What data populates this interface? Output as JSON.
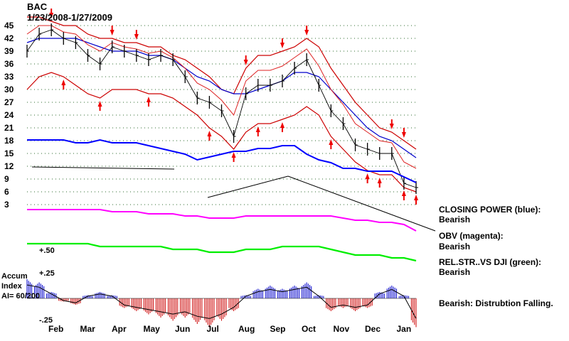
{
  "chart_data": {
    "type": "line",
    "title": "BAC",
    "subtitle": "1/23/2008-1/27/2009",
    "price_ticks": [
      45,
      42,
      39,
      36,
      33,
      30,
      27,
      24,
      21,
      18,
      15,
      12,
      9,
      6,
      3
    ],
    "ylim": [
      3,
      45
    ],
    "month_labels": [
      "Feb",
      "Mar",
      "Apr",
      "May",
      "Jun",
      "Jul",
      "Aug",
      "Sep",
      "Oct",
      "Nov",
      "Dec",
      "Jan"
    ],
    "accum_ticks": [
      "+.50",
      "+.25",
      "-.25"
    ],
    "price_series": {
      "x": [
        0,
        8,
        16,
        24,
        32,
        40,
        48,
        56,
        64,
        72,
        80,
        88,
        96,
        104,
        112,
        120,
        128,
        136,
        144,
        152,
        160,
        168,
        176,
        184,
        192,
        200,
        208,
        216,
        224,
        232,
        240,
        248,
        256
      ],
      "close": [
        39,
        43,
        44,
        42,
        41,
        38,
        36,
        40,
        39,
        38,
        37,
        38,
        37,
        33,
        28,
        27,
        25,
        19,
        29,
        31,
        31,
        32,
        35,
        37,
        31,
        25,
        22,
        17,
        16,
        15,
        15,
        8,
        7
      ]
    },
    "moving_average_blue": [
      41,
      42,
      42,
      42,
      42,
      41,
      40,
      39,
      39,
      39,
      38,
      38,
      37,
      35,
      33,
      32,
      30,
      29,
      29,
      30,
      31,
      32,
      34,
      34,
      33,
      30,
      27,
      24,
      21,
      19,
      18,
      16,
      14
    ],
    "band_upper": [
      47,
      47,
      46,
      45,
      45,
      43,
      42,
      42,
      41,
      41,
      40,
      40,
      38,
      37,
      35,
      33,
      30,
      29,
      35,
      38,
      38,
      39,
      40,
      42,
      40,
      35,
      31,
      27,
      24,
      21,
      20,
      18,
      16
    ],
    "band_lower": [
      30,
      33,
      34,
      33,
      31,
      29,
      28,
      30,
      30,
      30,
      29,
      29,
      28,
      26,
      24,
      21,
      19,
      16,
      20,
      22,
      22,
      23,
      24,
      26,
      24,
      19,
      16,
      13,
      11,
      10,
      10,
      7,
      6
    ],
    "indicators": [
      {
        "name": "CLOSING POWER (blue):",
        "status": "Bearish",
        "color": "#0000ff"
      },
      {
        "name": "OBV (magenta):",
        "status": "Bearish",
        "color": "#ff00ff"
      },
      {
        "name": "REL.STR..VS DJI (green):",
        "status": "Bearish",
        "color": "#00ee00"
      }
    ],
    "closing_power": [
      12,
      12,
      12,
      12,
      11,
      11,
      12,
      11,
      11,
      11,
      10,
      9,
      8,
      7,
      5,
      6,
      7,
      8,
      8,
      9,
      9,
      10,
      10,
      7,
      5,
      4,
      2,
      2,
      1,
      1,
      1,
      -1,
      -3
    ],
    "obv": [
      5,
      5,
      5,
      5,
      5,
      5,
      5,
      4,
      4,
      4,
      3,
      3,
      3,
      2,
      2,
      1,
      1,
      1,
      2,
      2,
      2,
      2,
      2,
      2,
      2,
      2,
      1,
      0,
      0,
      -1,
      -1,
      -2,
      -5
    ],
    "rel_str": [
      3,
      3,
      3,
      3,
      3,
      3,
      2,
      2,
      2,
      2,
      2,
      2,
      1,
      1,
      1,
      0,
      0,
      0,
      1,
      1,
      1,
      2,
      2,
      2,
      2,
      1,
      0,
      -1,
      -1,
      -1,
      -2,
      -2,
      -3
    ],
    "accum_index": {
      "label_1": "Accum",
      "label_2": "Index",
      "label_3": "AI= 60/200",
      "values": [
        0.3,
        0.25,
        0.1,
        -0.05,
        -0.1,
        0.05,
        0.1,
        0.05,
        -0.15,
        -0.2,
        -0.25,
        -0.3,
        -0.35,
        -0.3,
        -0.4,
        -0.45,
        -0.35,
        -0.2,
        0.05,
        0.15,
        0.2,
        0.15,
        0.2,
        0.25,
        0.05,
        -0.2,
        -0.15,
        -0.2,
        -0.15,
        0.1,
        0.2,
        0.05,
        -0.45
      ]
    },
    "note": "Bearish: Distrubtion Falling."
  }
}
